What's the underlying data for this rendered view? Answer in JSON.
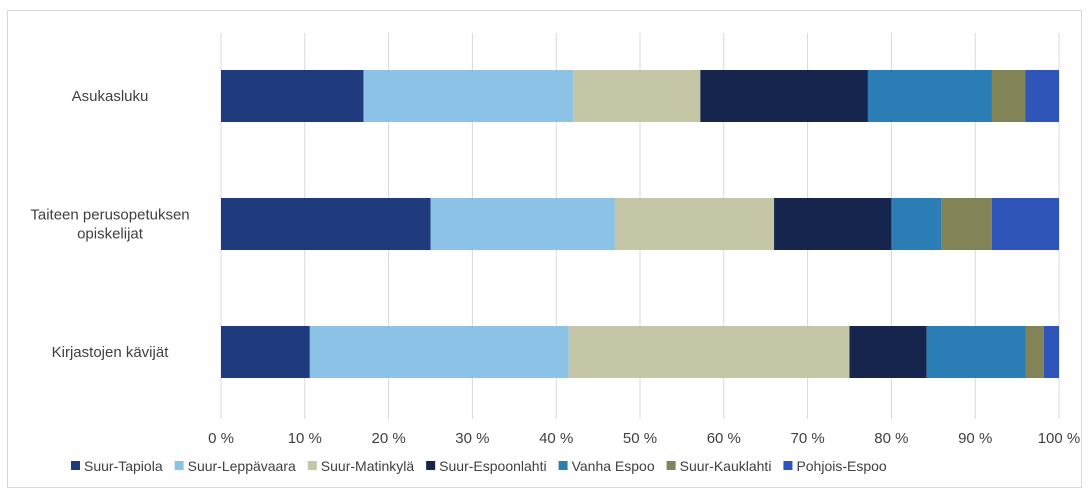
{
  "chart_data": {
    "type": "bar",
    "orientation": "horizontal",
    "stacked": true,
    "normalized": true,
    "title": "",
    "xlabel": "",
    "ylabel": "",
    "xlim": [
      0,
      100
    ],
    "grid": true,
    "legend_position": "bottom",
    "categories": [
      "Asukasluku",
      [
        "Taiteen perusopetuksen",
        "opiskelijat"
      ],
      "Kirjastojen kävijät"
    ],
    "tick_labels": [
      "0 %",
      "10 %",
      "20 %",
      "30 %",
      "40 %",
      "50 %",
      "60 %",
      "70 %",
      "80 %",
      "90 %",
      "100 %"
    ],
    "series": [
      {
        "name": "Suur-Tapiola",
        "color": "#1f3a7d",
        "values": [
          17,
          25,
          10.6
        ]
      },
      {
        "name": "Suur-Leppävaara",
        "color": "#8cc2e6",
        "values": [
          25,
          22,
          30.9
        ]
      },
      {
        "name": "Suur-Matinkylä",
        "color": "#c4c6a6",
        "values": [
          15.2,
          19,
          33.5
        ]
      },
      {
        "name": "Suur-Espoonlahti",
        "color": "#15254d",
        "values": [
          20,
          14,
          9.2
        ]
      },
      {
        "name": "Vanha Espoo",
        "color": "#2a7db5",
        "values": [
          14.8,
          6,
          11.8
        ]
      },
      {
        "name": "Suur-Kauklahti",
        "color": "#828457",
        "values": [
          4,
          6,
          2.2
        ]
      },
      {
        "name": "Pohjois-Espoo",
        "color": "#2f55b8",
        "values": [
          4,
          8,
          1.8
        ]
      }
    ],
    "colors": {
      "grid": "#d9d9d9",
      "text": "#404040",
      "frame": "#d9d9d9"
    }
  }
}
